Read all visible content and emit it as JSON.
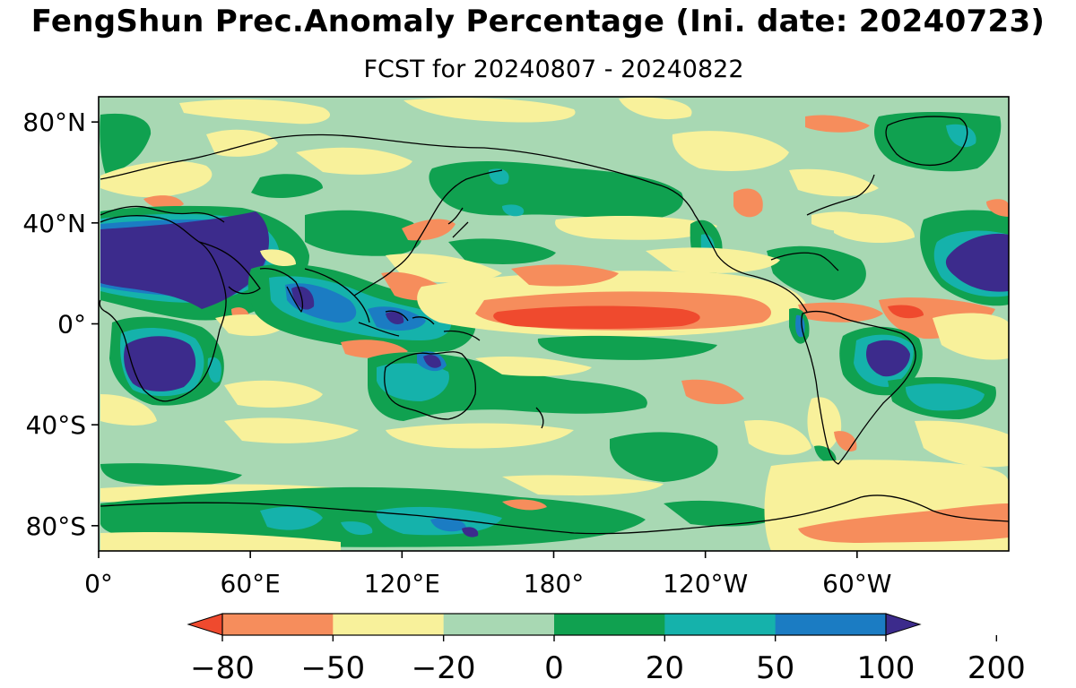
{
  "title": "FengShun Prec.Anomaly Percentage (Ini. date: 20240723)",
  "subtitle": "FCST for 20240807 - 20240822",
  "map": {
    "projection": "PlateCarree",
    "lon_range": [
      0,
      360
    ],
    "lat_range": [
      -90,
      90
    ],
    "y_ticks": [
      {
        "lat": 80,
        "label": "80°N"
      },
      {
        "lat": 40,
        "label": "40°N"
      },
      {
        "lat": 0,
        "label": "0°"
      },
      {
        "lat": -40,
        "label": "40°S"
      },
      {
        "lat": -80,
        "label": "80°S"
      }
    ],
    "x_ticks": [
      {
        "lon": 0,
        "label": "0°"
      },
      {
        "lon": 60,
        "label": "60°E"
      },
      {
        "lon": 120,
        "label": "120°E"
      },
      {
        "lon": 180,
        "label": "180°"
      },
      {
        "lon": 240,
        "label": "120°W"
      },
      {
        "lon": 300,
        "label": "60°W"
      }
    ]
  },
  "colorbar": {
    "boundaries": [
      -80,
      -50,
      -20,
      0,
      20,
      50,
      100,
      200
    ],
    "labels": [
      "−80",
      "−50",
      "−20",
      "0",
      "20",
      "50",
      "100",
      "200"
    ],
    "colors": [
      "#ef4a2e",
      "#f68d5c",
      "#f8f19b",
      "#a8d8b3",
      "#10a150",
      "#15b2ab",
      "#1b7cc3",
      "#3c2b8c"
    ],
    "extend": "both"
  },
  "colors": {
    "strong_negative": "#ef4a2e",
    "negative": "#f68d5c",
    "weak_negative": "#f8f19b",
    "weak_positive": "#a8d8b3",
    "positive": "#10a150",
    "strong_positive": "#15b2ab",
    "very_strong_positive": "#1b7cc3",
    "extreme_positive": "#3c2b8c"
  }
}
